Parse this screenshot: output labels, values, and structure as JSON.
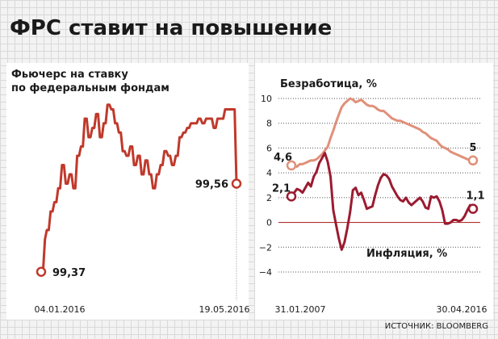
{
  "title": "ФРС ставит на повышение",
  "source": "ИСТОЧНИК: BLOOMBERG",
  "colors": {
    "futures": "#c0392b",
    "unemployment": "#e0907a",
    "inflation": "#9b1b30",
    "zero_line": "#b03030",
    "grid": "#555555"
  },
  "chart_data": [
    {
      "type": "line",
      "title": "Фьючерс на ставку по федеральным фондам",
      "title_lines": [
        "Фьючерс на ставку",
        "по федеральным фондам"
      ],
      "x_labels": [
        "04.01.2016",
        "19.05.2016"
      ],
      "ylim": [
        99.34,
        99.82
      ],
      "grid": false,
      "series": [
        {
          "values": [
            99.37,
            99.37,
            99.44,
            99.46,
            99.46,
            99.5,
            99.5,
            99.52,
            99.52,
            99.55,
            99.55,
            99.6,
            99.6,
            99.56,
            99.56,
            99.58,
            99.58,
            99.55,
            99.55,
            99.62,
            99.62,
            99.64,
            99.64,
            99.7,
            99.7,
            99.66,
            99.66,
            99.68,
            99.68,
            99.71,
            99.71,
            99.66,
            99.66,
            99.69,
            99.69,
            99.73,
            99.73,
            99.72,
            99.72,
            99.69,
            99.69,
            99.67,
            99.67,
            99.63,
            99.63,
            99.62,
            99.62,
            99.64,
            99.64,
            99.6,
            99.6,
            99.62,
            99.62,
            99.58,
            99.58,
            99.61,
            99.61,
            99.58,
            99.58,
            99.55,
            99.55,
            99.58,
            99.58,
            99.6,
            99.6,
            99.63,
            99.63,
            99.62,
            99.62,
            99.6,
            99.6,
            99.62,
            99.62,
            99.66,
            99.66,
            99.67,
            99.67,
            99.68,
            99.68,
            99.69,
            99.69,
            99.69,
            99.69,
            99.7,
            99.7,
            99.69,
            99.69,
            99.7,
            99.7,
            99.7,
            99.7,
            99.68,
            99.68,
            99.7,
            99.7,
            99.7,
            99.7,
            99.72,
            99.72,
            99.72,
            99.72,
            99.72,
            99.72,
            99.56
          ],
          "end_value_label": "99,56",
          "start_value_label": "99,37"
        }
      ]
    },
    {
      "type": "line",
      "x_labels": [
        "31.01.2007",
        "30.04.2016"
      ],
      "ylim": [
        -4,
        10
      ],
      "y_ticks": [
        -4,
        -2,
        0,
        2,
        4,
        6,
        8,
        10
      ],
      "grid": true,
      "series": [
        {
          "name": "Безработица, %",
          "values": [
            4.6,
            4.6,
            4.5,
            4.7,
            4.7,
            4.8,
            4.9,
            5.0,
            5.0,
            5.1,
            5.3,
            5.5,
            5.8,
            6.1,
            6.8,
            7.4,
            8.1,
            8.7,
            9.3,
            9.6,
            9.8,
            10.0,
            9.9,
            9.7,
            9.8,
            9.9,
            9.7,
            9.5,
            9.4,
            9.4,
            9.3,
            9.1,
            9.0,
            9.0,
            8.8,
            8.6,
            8.4,
            8.3,
            8.2,
            8.2,
            8.1,
            8.0,
            7.9,
            7.8,
            7.7,
            7.6,
            7.5,
            7.3,
            7.2,
            7.0,
            6.8,
            6.7,
            6.6,
            6.3,
            6.1,
            6.0,
            5.9,
            5.7,
            5.6,
            5.5,
            5.4,
            5.3,
            5.2,
            5.1,
            5.0,
            5.0
          ],
          "start_value_label": "4,6",
          "end_value_label": "5"
        },
        {
          "name": "Инфляция, %",
          "values": [
            2.1,
            2.4,
            2.7,
            2.6,
            2.4,
            2.8,
            3.2,
            2.9,
            3.7,
            4.1,
            4.8,
            5.2,
            5.6,
            4.9,
            3.7,
            1.0,
            -0.2,
            -1.3,
            -2.2,
            -1.6,
            -0.5,
            0.8,
            2.6,
            2.8,
            2.2,
            2.4,
            1.8,
            1.1,
            1.2,
            1.3,
            2.2,
            3.0,
            3.6,
            3.9,
            3.8,
            3.5,
            2.9,
            2.5,
            2.1,
            1.8,
            1.7,
            2.0,
            1.6,
            1.4,
            1.6,
            1.8,
            2.0,
            1.7,
            1.2,
            1.1,
            2.1,
            2.0,
            2.1,
            1.7,
            1.0,
            -0.1,
            -0.1,
            0.0,
            0.2,
            0.2,
            0.1,
            0.2,
            0.5,
            1.0,
            1.4,
            1.1
          ],
          "start_value_label": "2,1",
          "end_value_label": "1,1"
        }
      ]
    }
  ]
}
